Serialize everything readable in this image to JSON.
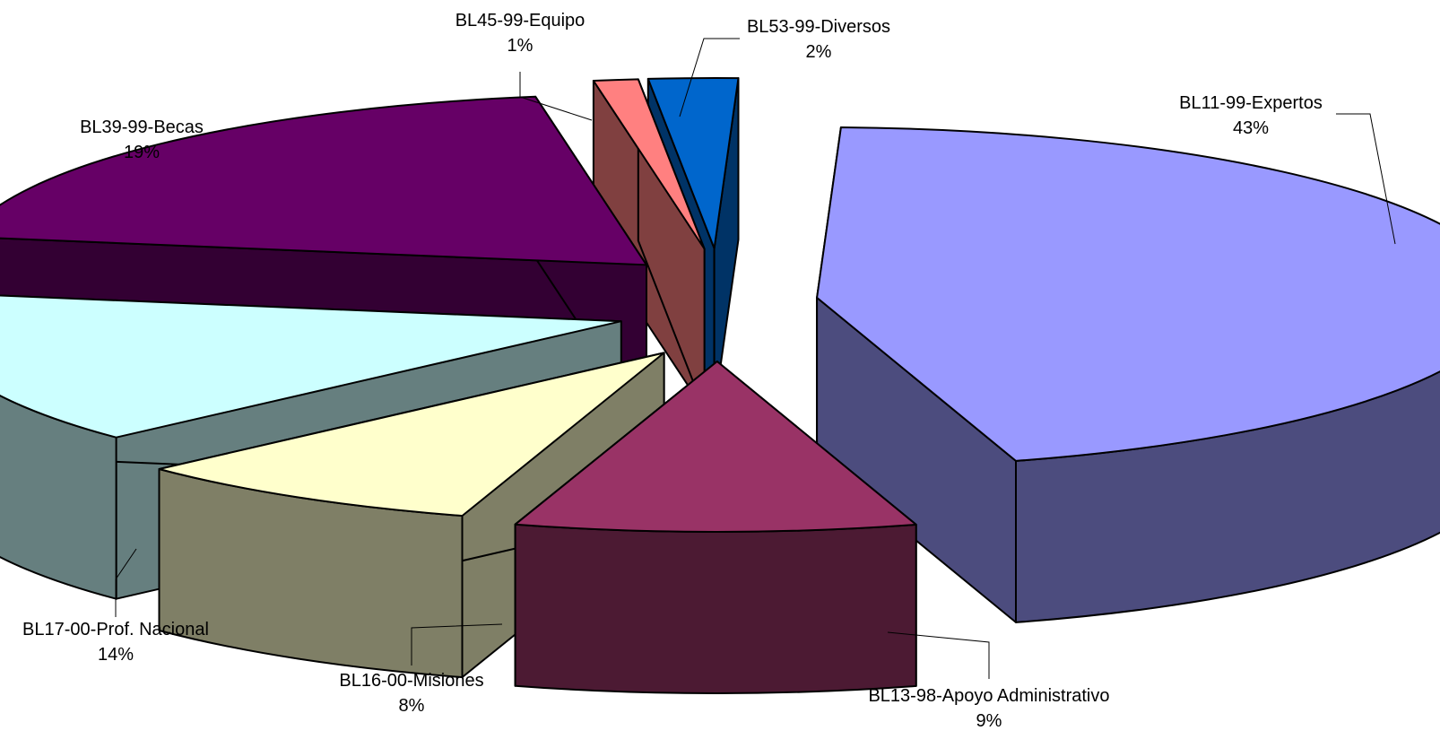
{
  "chart_data": {
    "type": "pie",
    "variant": "3d-exploded",
    "title": "",
    "series": [
      {
        "values": [
          43,
          9,
          8,
          14,
          19,
          1,
          2
        ],
        "categories": [
          "BL11-99-Expertos",
          "BL13-98-Apoyo Administrativo",
          "BL16-00-Misiones",
          "BL17-00-Prof. Nacional",
          "BL39-99-Becas",
          "BL45-99-Equipo",
          "BL53-99-Diversos"
        ]
      }
    ],
    "labels": [
      {
        "name": "BL11-99-Expertos",
        "pct": "43%"
      },
      {
        "name": "BL13-98-Apoyo Administrativo",
        "pct": "9%"
      },
      {
        "name": "BL16-00-Misiones",
        "pct": "8%"
      },
      {
        "name": "BL17-00-Prof. Nacional",
        "pct": "14%"
      },
      {
        "name": "BL39-99-Becas",
        "pct": "19%"
      },
      {
        "name": "BL45-99-Equipo",
        "pct": "1%"
      },
      {
        "name": "BL53-99-Diversos",
        "pct": "2%"
      }
    ],
    "colors": [
      {
        "top": "#9999ff",
        "side": "#4c4c7e"
      },
      {
        "top": "#993366",
        "side": "#4c1a33"
      },
      {
        "top": "#ffffcc",
        "side": "#7f7f66"
      },
      {
        "top": "#ccffff",
        "side": "#667f7f"
      },
      {
        "top": "#660066",
        "side": "#330033"
      },
      {
        "top": "#ff8080",
        "side": "#804040"
      },
      {
        "top": "#0066cc",
        "side": "#003366"
      }
    ]
  }
}
